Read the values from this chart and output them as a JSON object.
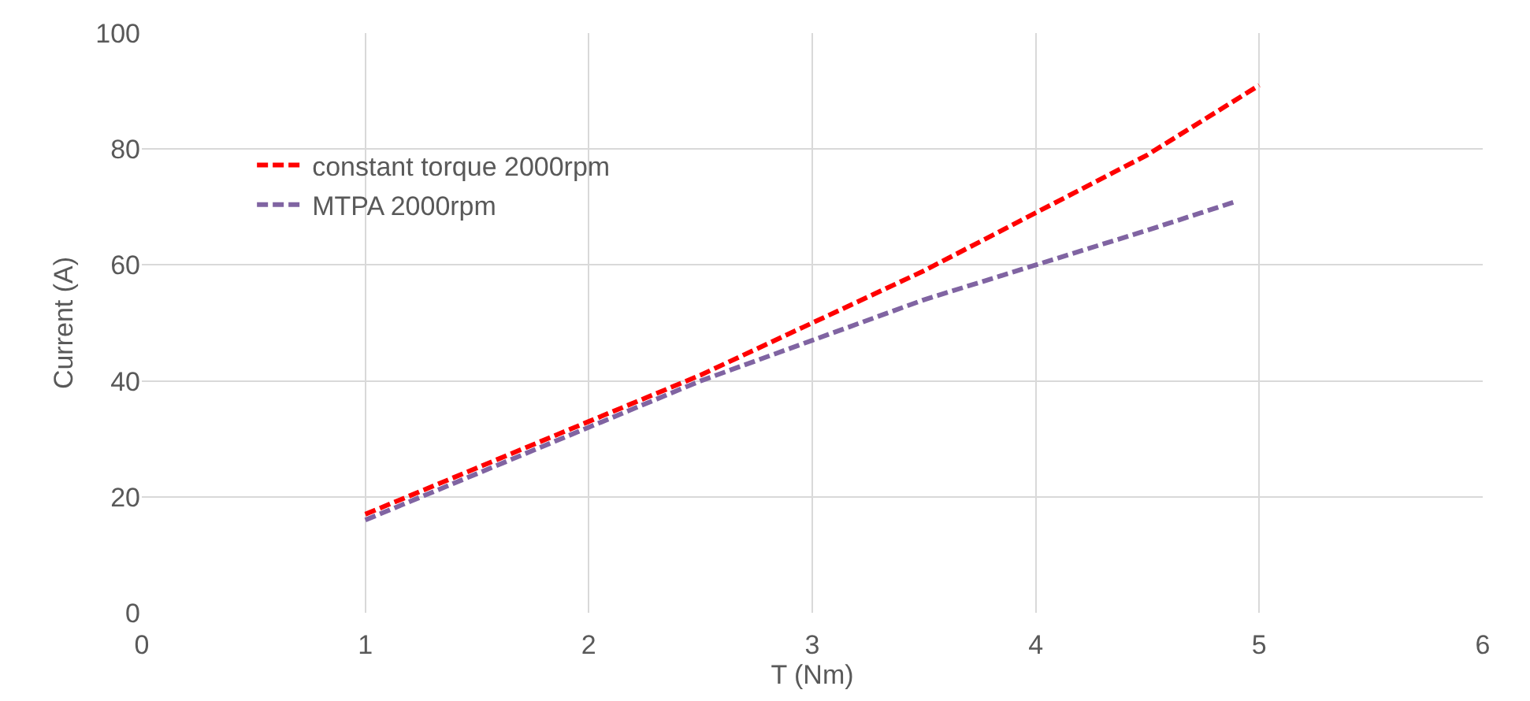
{
  "chart_data": {
    "type": "line",
    "xlabel": "T (Nm)",
    "ylabel": "Current (A)",
    "xlim": [
      0,
      6
    ],
    "xticks": [
      0,
      1,
      2,
      3,
      4,
      5,
      6
    ],
    "ylim": [
      0,
      100
    ],
    "yticks": [
      0,
      20,
      40,
      60,
      80,
      100
    ],
    "grid": true,
    "legend": "top left",
    "marker": "none",
    "series": [
      {
        "name": "constant torque 2000rpm",
        "color": "#ff0000",
        "line_style": "dashed",
        "x": [
          1,
          1.5,
          2,
          2.5,
          3,
          3.5,
          4,
          4.5,
          5
        ],
        "values": [
          17,
          25,
          33,
          41,
          50,
          59,
          69,
          79,
          91
        ]
      },
      {
        "name": "MTPA 2000rpm",
        "color": "#8064a2",
        "line_style": "dashed",
        "x": [
          1,
          1.5,
          2,
          2.5,
          3,
          3.5,
          4,
          4.5,
          4.9
        ],
        "values": [
          16,
          24,
          32,
          40,
          47,
          54,
          60,
          66,
          71
        ]
      }
    ]
  }
}
